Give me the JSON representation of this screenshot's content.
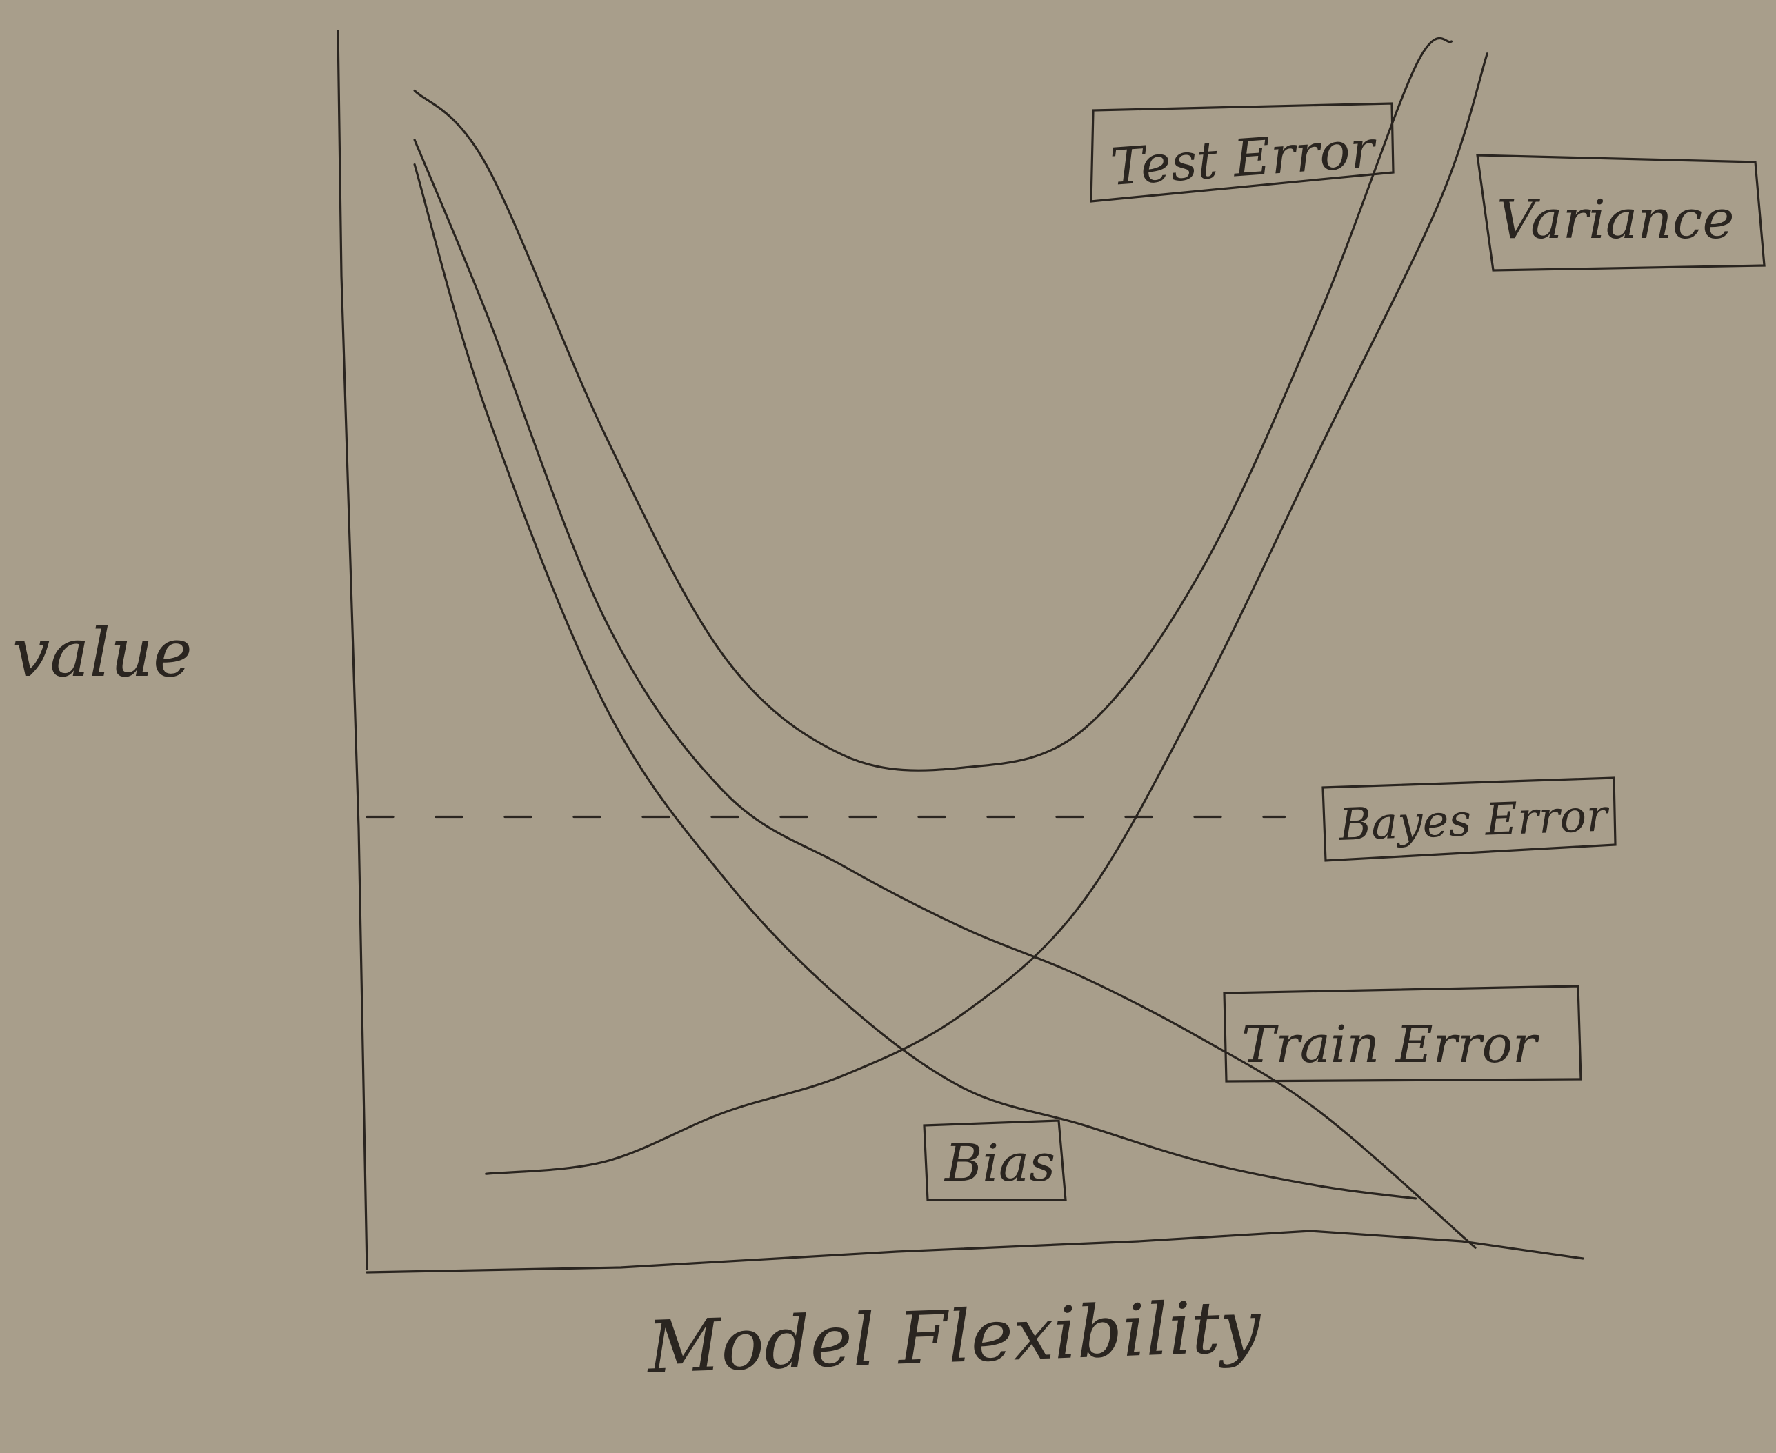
{
  "chart_data": {
    "type": "line",
    "xlabel": "Model Flexibility",
    "ylabel": "value",
    "x_range": [
      0,
      10
    ],
    "y_range": [
      0,
      10
    ],
    "grid": false,
    "series": [
      {
        "name": "Test Error",
        "x": [
          0.4,
          1.0,
          2.0,
          3.0,
          4.0,
          5.0,
          6.0,
          7.0,
          8.0,
          8.8,
          9.1
        ],
        "y": [
          9.6,
          9.0,
          6.8,
          5.0,
          4.2,
          4.1,
          4.4,
          5.7,
          7.8,
          9.8,
          10.0
        ]
      },
      {
        "name": "Variance",
        "x": [
          1.0,
          2.0,
          3.0,
          4.0,
          5.0,
          6.0,
          7.0,
          8.0,
          9.0,
          9.4
        ],
        "y": [
          0.8,
          0.9,
          1.3,
          1.6,
          2.1,
          3.0,
          4.7,
          6.7,
          8.7,
          9.9
        ]
      },
      {
        "name": "Train Error",
        "x": [
          0.4,
          1.0,
          2.0,
          3.0,
          4.0,
          5.0,
          6.0,
          7.0,
          8.0,
          9.3
        ],
        "y": [
          9.2,
          7.8,
          5.3,
          3.9,
          3.3,
          2.8,
          2.4,
          1.9,
          1.3,
          0.2
        ]
      },
      {
        "name": "Bias",
        "x": [
          0.4,
          1.0,
          2.0,
          3.0,
          4.0,
          5.0,
          6.0,
          7.0,
          8.0,
          8.8
        ],
        "y": [
          9.0,
          7.0,
          4.6,
          3.2,
          2.2,
          1.5,
          1.2,
          0.9,
          0.7,
          0.6
        ]
      },
      {
        "name": "Bayes Error",
        "x": [
          0.0,
          7.7
        ],
        "y": [
          3.7,
          3.7
        ]
      }
    ],
    "labels": [
      "Test Error",
      "Variance",
      "Bayes Error",
      "Train Error",
      "Bias"
    ]
  }
}
